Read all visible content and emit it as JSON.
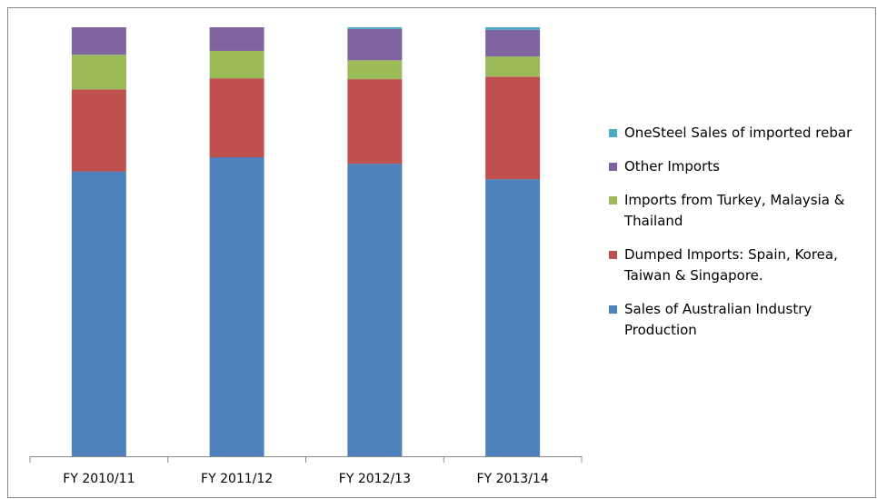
{
  "chart_data": {
    "type": "stacked_bar_100",
    "categories": [
      "FY 2010/11",
      "FY 2011/12",
      "FY 2012/13",
      "FY 2013/14"
    ],
    "series": [
      {
        "name": "Sales of Australian Industry Production",
        "color": "#4f81bd",
        "values": [
          66.4,
          69.7,
          68.2,
          64.6
        ]
      },
      {
        "name": "Dumped Imports: Spain, Korea, Taiwan & Singapore.",
        "color": "#c0504d",
        "values": [
          19.1,
          18.4,
          19.7,
          23.9
        ]
      },
      {
        "name": "Imports from Turkey, Malaysia & Thailand",
        "color": "#9bbb59",
        "values": [
          8.1,
          6.4,
          4.4,
          4.7
        ]
      },
      {
        "name": "Other Imports",
        "color": "#8064a2",
        "values": [
          6.4,
          5.5,
          7.3,
          6.2
        ]
      },
      {
        "name": "OneSteel Sales of imported rebar",
        "color": "#4bacc6",
        "values": [
          0,
          0,
          0.4,
          0.6
        ]
      }
    ],
    "ylim": [
      0,
      100
    ],
    "legend": "right"
  }
}
